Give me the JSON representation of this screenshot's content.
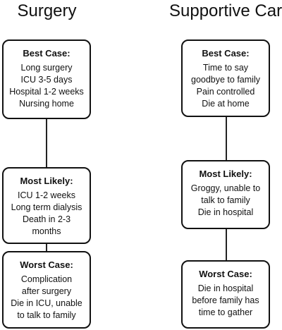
{
  "columns": [
    {
      "title": "Surgery",
      "boxes": [
        {
          "heading": "Best Case:",
          "lines": [
            "Long surgery",
            "ICU 3-5 days",
            "Hospital 1-2 weeks",
            "Nursing home"
          ]
        },
        {
          "heading": "Most Likely:",
          "lines": [
            "ICU 1-2 weeks",
            "Long term dialysis",
            "Death in 2-3",
            "months"
          ]
        },
        {
          "heading": "Worst Case:",
          "lines": [
            "Complication",
            "after surgery",
            "Die in ICU, unable",
            "to talk to family"
          ]
        }
      ]
    },
    {
      "title": "Supportive Care",
      "boxes": [
        {
          "heading": "Best Case:",
          "lines": [
            "Time to say",
            "goodbye to family",
            "Pain controlled",
            "Die at home"
          ]
        },
        {
          "heading": "Most Likely:",
          "lines": [
            "Groggy, unable to",
            "talk to family",
            "Die in hospital"
          ]
        },
        {
          "heading": "Worst Case:",
          "lines": [
            "Die in hospital",
            "before family has",
            "time to gather"
          ]
        }
      ]
    }
  ]
}
